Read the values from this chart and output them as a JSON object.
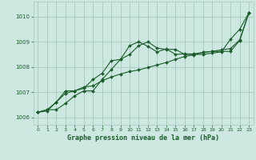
{
  "xlabel": "Graphe pression niveau de la mer (hPa)",
  "background_color": "#cce8e0",
  "grid_color": "#a8c8bc",
  "line_color": "#1a5c2a",
  "xlim": [
    -0.5,
    23.5
  ],
  "ylim": [
    1005.7,
    1010.6
  ],
  "yticks": [
    1006,
    1007,
    1008,
    1009,
    1010
  ],
  "xticks": [
    0,
    1,
    2,
    3,
    4,
    5,
    6,
    7,
    8,
    9,
    10,
    11,
    12,
    13,
    14,
    15,
    16,
    17,
    18,
    19,
    20,
    21,
    22,
    23
  ],
  "series": [
    {
      "x": [
        0,
        1,
        2,
        3,
        4,
        5,
        6,
        7,
        8,
        9,
        10,
        11,
        12,
        13,
        14,
        15,
        16,
        17,
        18,
        19,
        20,
        21,
        22,
        23
      ],
      "y": [
        1006.2,
        1006.3,
        1006.3,
        1006.55,
        1006.85,
        1007.05,
        1007.05,
        1007.5,
        1007.9,
        1008.3,
        1008.5,
        1008.85,
        1009.0,
        1008.75,
        1008.7,
        1008.7,
        1008.5,
        1008.5,
        1008.5,
        1008.55,
        1008.6,
        1009.1,
        1009.5,
        1010.15
      ]
    },
    {
      "x": [
        0,
        1,
        2,
        3,
        4,
        5,
        6,
        7,
        8,
        9,
        10,
        11,
        12,
        13,
        14,
        15,
        16,
        17,
        18,
        19,
        20,
        21,
        22,
        23
      ],
      "y": [
        1006.2,
        1006.25,
        1006.6,
        1007.05,
        1007.05,
        1007.15,
        1007.5,
        1007.75,
        1008.25,
        1008.3,
        1008.85,
        1009.0,
        1008.82,
        1008.6,
        1008.72,
        1008.5,
        1008.52,
        1008.52,
        1008.58,
        1008.62,
        1008.62,
        1008.62,
        1009.05,
        1010.15
      ]
    },
    {
      "x": [
        0,
        1,
        2,
        3,
        4,
        5,
        6,
        7,
        8,
        9,
        10,
        11,
        12,
        13,
        14,
        15,
        16,
        17,
        18,
        19,
        20,
        21,
        22,
        23
      ],
      "y": [
        1006.2,
        1006.3,
        1006.6,
        1006.95,
        1007.05,
        1007.2,
        1007.25,
        1007.45,
        1007.6,
        1007.72,
        1007.82,
        1007.88,
        1007.98,
        1008.08,
        1008.18,
        1008.3,
        1008.42,
        1008.48,
        1008.58,
        1008.62,
        1008.68,
        1008.73,
        1009.08,
        1010.15
      ]
    }
  ]
}
